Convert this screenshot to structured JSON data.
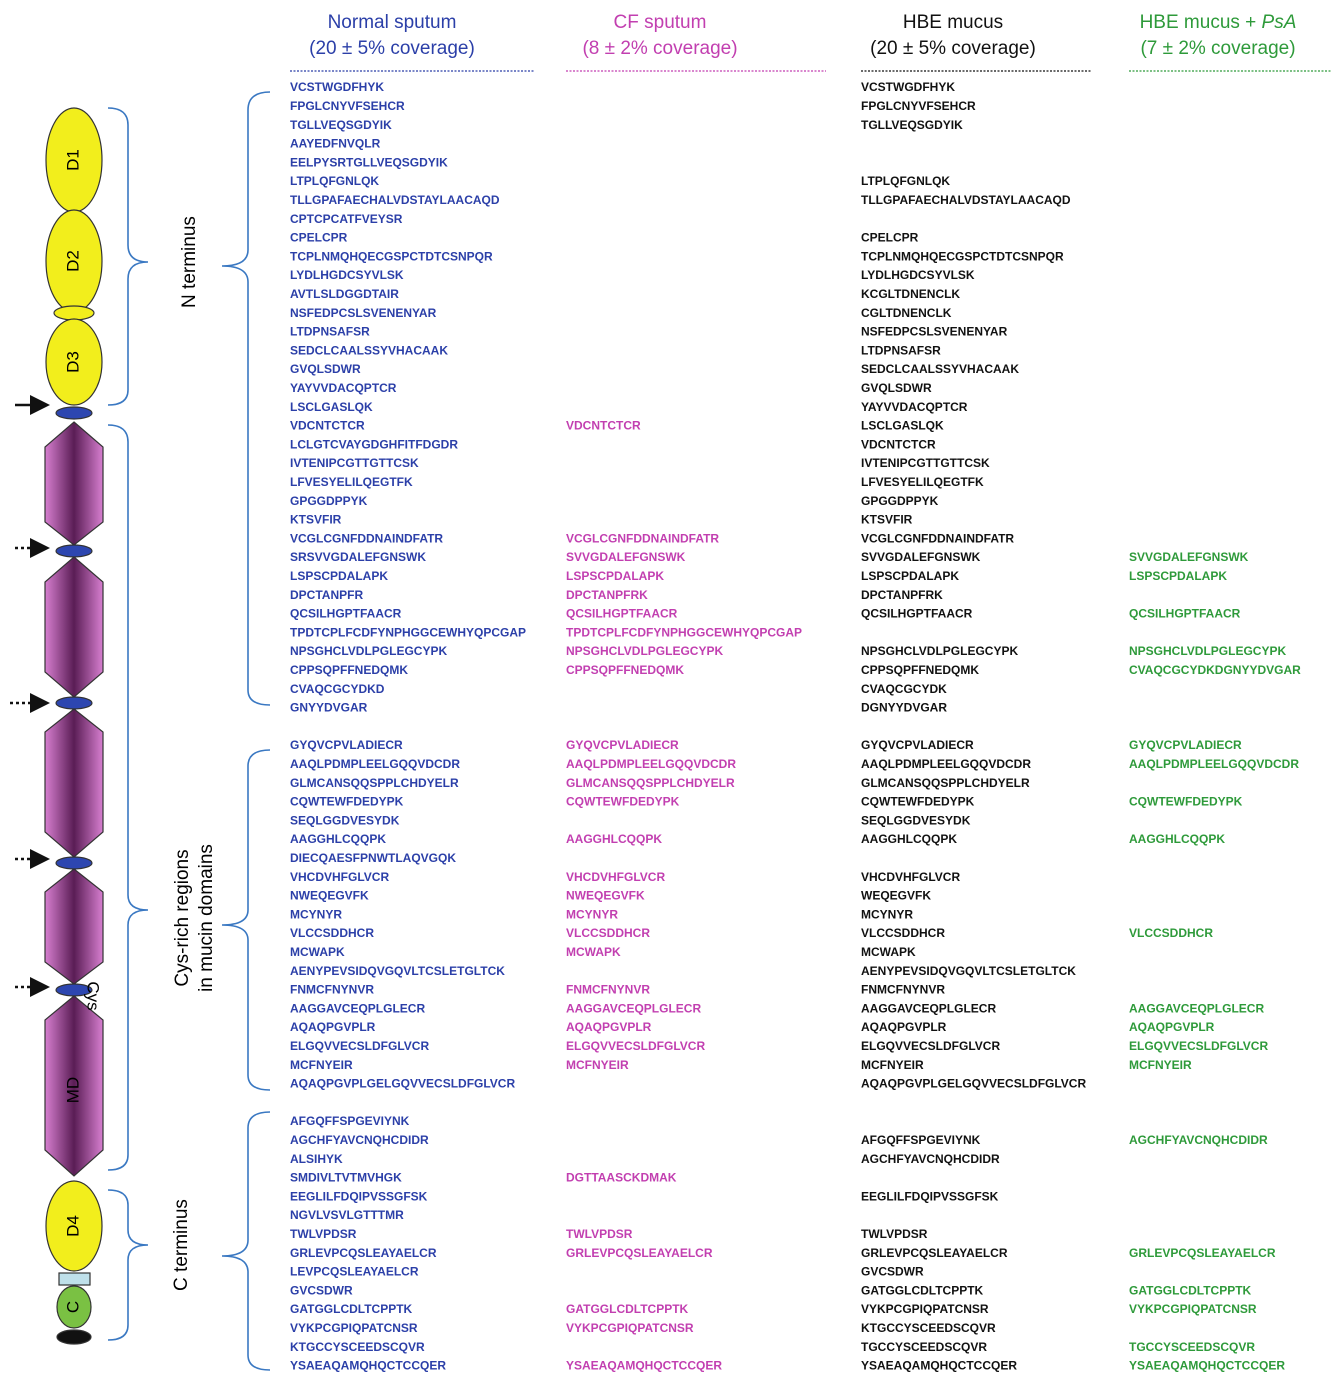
{
  "headers": [
    {
      "title": "Normal sputum",
      "coverage": "(20 ± 5% coverage)",
      "color": "#2b3fa8"
    },
    {
      "title": "CF sputum",
      "coverage": "(8 ± 2% coverage)",
      "color": "#c23fb0"
    },
    {
      "title": "HBE mucus",
      "coverage": "(20 ± 5% coverage)",
      "color": "#111111"
    },
    {
      "title": "HBE mucus +",
      "title_italic": "PsA",
      "coverage": "(7 ± 2% coverage)",
      "color": "#2e9a3a"
    }
  ],
  "diagram": {
    "domains": [
      "D1",
      "D2",
      "D3",
      "MD",
      "Cys",
      "D4",
      "C"
    ],
    "regions": [
      [
        "N terminus"
      ],
      [
        "Cys-rich regions",
        "in mucin domains"
      ],
      [
        "C terminus"
      ]
    ]
  },
  "rows": [
    [
      "VCSTWGDFHYK",
      null,
      "VCSTWGDFHYK",
      null
    ],
    [
      "FPGLCNYVFSEHCR",
      null,
      "FPGLCNYVFSEHCR",
      null
    ],
    [
      "TGLLVEQSGDYIK",
      null,
      "TGLLVEQSGDYIK",
      null
    ],
    [
      "AAYEDFNVQLR",
      null,
      null,
      null
    ],
    [
      "EELPYSRTGLLVEQSGDYIK",
      null,
      null,
      null
    ],
    [
      "LTPLQFGNLQK",
      null,
      "LTPLQFGNLQK",
      null
    ],
    [
      "TLLGPAFAECHALVDSTAYLAACAQD",
      null,
      "TLLGPAFAECHALVDSTAYLAACAQD",
      null
    ],
    [
      "CPTCPCATFVEYSR",
      null,
      null,
      null
    ],
    [
      "CPELCPR",
      null,
      "CPELCPR",
      null
    ],
    [
      "TCPLNMQHQECGSPCTDTCSNPQR",
      null,
      "TCPLNMQHQECGSPCTDTCSNPQR",
      null
    ],
    [
      "LYDLHGDCSYVLSK",
      null,
      "LYDLHGDCSYVLSK",
      null
    ],
    [
      "AVTLSLDGGDTAIR",
      null,
      "KCGLTDNENCLK",
      null
    ],
    [
      "NSFEDPCSLSVENENYAR",
      null,
      "CGLTDNENCLK",
      null
    ],
    [
      "LTDPNSAFSR",
      null,
      "NSFEDPCSLSVENENYAR",
      null
    ],
    [
      "SEDCLCAALSSYVHACAAK",
      null,
      "LTDPNSAFSR",
      null
    ],
    [
      "GVQLSDWR",
      null,
      "SEDCLCAALSSYVHACAAK",
      null
    ],
    [
      "YAYVVDACQPTCR",
      null,
      "GVQLSDWR",
      null
    ],
    [
      "LSCLGASLQK",
      null,
      "YAYVVDACQPTCR",
      null
    ],
    [
      "VDCNTCTCR",
      "VDCNTCTCR",
      "LSCLGASLQK",
      null
    ],
    [
      "LCLGTCVAYGDGHFITFDGDR",
      null,
      "VDCNTCTCR",
      null
    ],
    [
      "IVTENIPCGTTGTTCSK",
      null,
      "IVTENIPCGTTGTTCSK",
      null
    ],
    [
      "LFVESYELILQEGTFK",
      null,
      "LFVESYELILQEGTFK",
      null
    ],
    [
      "GPGGDPPYK",
      null,
      "GPGGDPPYK",
      null
    ],
    [
      "KTSVFIR",
      null,
      "KTSVFIR",
      null
    ],
    [
      "VCGLCGNFDDNAINDFATR",
      "VCGLCGNFDDNAINDFATR",
      "VCGLCGNFDDNAINDFATR",
      null
    ],
    [
      "SRSVVGDALEFGNSWK",
      "SVVGDALEFGNSWK",
      "SVVGDALEFGNSWK",
      "SVVGDALEFGNSWK"
    ],
    [
      "LSPSCPDALAPK",
      "LSPSCPDALAPK",
      "LSPSCPDALAPK",
      "LSPSCPDALAPK"
    ],
    [
      "DPCTANPFR",
      "DPCTANPFRK",
      "DPCTANPFRK",
      null
    ],
    [
      "QCSILHGPTFAACR",
      "QCSILHGPTFAACR",
      "QCSILHGPTFAACR",
      "QCSILHGPTFAACR"
    ],
    [
      "TPDTCPLFCDFYNPHGGCEWHYQPCGAP",
      "TPDTCPLFCDFYNPHGGCEWHYQPCGAP",
      null,
      null
    ],
    [
      "NPSGHCLVDLPGLEGCYPK",
      "NPSGHCLVDLPGLEGCYPK",
      "NPSGHCLVDLPGLEGCYPK",
      "NPSGHCLVDLPGLEGCYPK"
    ],
    [
      "CPPSQPFFNEDQMK",
      "CPPSQPFFNEDQMK",
      "CPPSQPFFNEDQMK",
      "CVAQCGCYDKDGNYYDVGAR"
    ],
    [
      "CVAQCGCYDKD",
      null,
      "CVAQCGCYDK",
      null
    ],
    [
      "GNYYDVGAR",
      null,
      "DGNYYDVGAR",
      null
    ],
    [
      null,
      null,
      null,
      null
    ],
    [
      "GYQVCPVLADIECR",
      "GYQVCPVLADIECR",
      "GYQVCPVLADIECR",
      "GYQVCPVLADIECR"
    ],
    [
      "AAQLPDMPLEELGQQVDCDR",
      "AAQLPDMPLEELGQQVDCDR",
      "AAQLPDMPLEELGQQVDCDR",
      "AAQLPDMPLEELGQQVDCDR"
    ],
    [
      "GLMCANSQQSPPLCHDYELR",
      "GLMCANSQQSPPLCHDYELR",
      "GLMCANSQQSPPLCHDYELR",
      null
    ],
    [
      "CQWTEWFDEDYPK",
      "CQWTEWFDEDYPK",
      "CQWTEWFDEDYPK",
      "CQWTEWFDEDYPK"
    ],
    [
      "SEQLGGDVESYDK",
      null,
      "SEQLGGDVESYDK",
      null
    ],
    [
      "AAGGHLCQQPK",
      "AAGGHLCQQPK",
      "AAGGHLCQQPK",
      "AAGGHLCQQPK"
    ],
    [
      "DIECQAESFPNWTLAQVGQK",
      null,
      null,
      null
    ],
    [
      "VHCDVHFGLVCR",
      "VHCDVHFGLVCR",
      "VHCDVHFGLVCR",
      null
    ],
    [
      "NWEQEGVFK",
      "NWEQEGVFK",
      "WEQEGVFK",
      null
    ],
    [
      "MCYNYR",
      "MCYNYR",
      "MCYNYR",
      null
    ],
    [
      "VLCCSDDHCR",
      "VLCCSDDHCR",
      "VLCCSDDHCR",
      "VLCCSDDHCR"
    ],
    [
      "MCWAPK",
      "MCWAPK",
      "MCWAPK",
      null
    ],
    [
      "AENYPEVSIDQVGQVLTCSLETGLTCK",
      null,
      "AENYPEVSIDQVGQVLTCSLETGLTCK",
      null
    ],
    [
      "FNMCFNYNVR",
      "FNMCFNYNVR",
      "FNMCFNYNVR",
      null
    ],
    [
      "AAGGAVCEQPLGLECR",
      "AAGGAVCEQPLGLECR",
      "AAGGAVCEQPLGLECR",
      "AAGGAVCEQPLGLECR"
    ],
    [
      "AQAQPGVPLR",
      "AQAQPGVPLR",
      "AQAQPGVPLR",
      "AQAQPGVPLR"
    ],
    [
      "ELGQVVECSLDFGLVCR",
      "ELGQVVECSLDFGLVCR",
      "ELGQVVECSLDFGLVCR",
      "ELGQVVECSLDFGLVCR"
    ],
    [
      "MCFNYEIR",
      "MCFNYEIR",
      "MCFNYEIR",
      "MCFNYEIR"
    ],
    [
      "AQAQPGVPLGELGQVVECSLDFGLVCR",
      null,
      "AQAQPGVPLGELGQVVECSLDFGLVCR",
      null
    ],
    [
      null,
      null,
      null,
      null
    ],
    [
      "AFGQFFSPGEVIYNK",
      null,
      null,
      null
    ],
    [
      "AGCHFYAVCNQHCDIDR",
      null,
      "AFGQFFSPGEVIYNK",
      "AGCHFYAVCNQHCDIDR"
    ],
    [
      "ALSIHYK",
      null,
      "AGCHFYAVCNQHCDIDR",
      null
    ],
    [
      "SMDIVLTVTMVHGK",
      "DGTTAASCKDMAK",
      null,
      null
    ],
    [
      "EEGLILFDQIPVSSGFSK",
      null,
      "EEGLILFDQIPVSSGFSK",
      null
    ],
    [
      "NGVLVSVLGTTTMR",
      null,
      null,
      null
    ],
    [
      "TWLVPDSR",
      "TWLVPDSR",
      "TWLVPDSR",
      null
    ],
    [
      "GRLEVPCQSLEAYAELCR",
      "GRLEVPCQSLEAYAELCR",
      "GRLEVPCQSLEAYAELCR",
      "GRLEVPCQSLEAYAELCR"
    ],
    [
      "LEVPCQSLEAYAELCR",
      null,
      "GVCSDWR",
      null
    ],
    [
      "GVCSDWR",
      null,
      "GATGGLCDLTCPPTK",
      "GATGGLCDLTCPPTK"
    ],
    [
      "GATGGLCDLTCPPTK",
      "GATGGLCDLTCPPTK",
      "VYKPCGPIQPATCNSR",
      "VYKPCGPIQPATCNSR"
    ],
    [
      "VYKPCGPIQPATCNSR",
      "VYKPCGPIQPATCNSR",
      "KTGCCYSCEEDSCQVR",
      null
    ],
    [
      "KTGCCYSCEEDSCQVR",
      null,
      "TGCCYSCEEDSCQVR",
      "TGCCYSCEEDSCQVR"
    ],
    [
      "YSAEAQAMQHQCTCCQER",
      "YSAEAQAMQHQCTCCQER",
      "YSAEAQAMQHQCTCCQER",
      "YSAEAQAMQHQCTCCQER"
    ]
  ]
}
